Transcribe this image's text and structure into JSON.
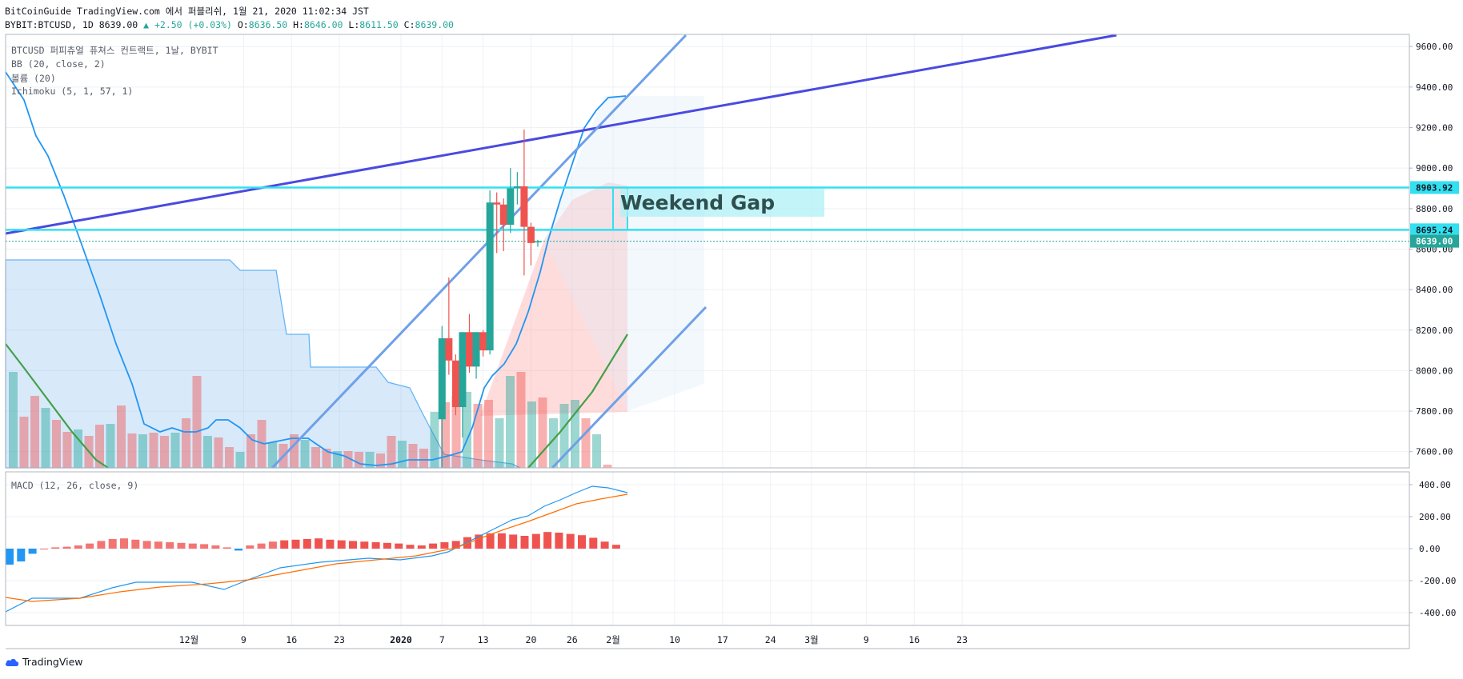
{
  "header": {
    "line1": "BitCoinGuide TradingView.com 에서 퍼블리쉬, 1월 21, 2020 11:02:34 JST",
    "symbol": "BYBIT:BTCUSD, 1D 8639.00",
    "change_arrow": "▲",
    "change": "+2.50 (+0.03%)",
    "o_label": "O:",
    "o": "8636.50",
    "h_label": "H:",
    "h": "8646.00",
    "l_label": "L:",
    "l": "8611.50",
    "c_label": "C:",
    "c": "8639.00"
  },
  "legend": {
    "title": "BTCUSD 퍼피츄얼 퓨쳐스 컨트랙트, 1날, BYBIT",
    "bb": "BB (20, close, 2)",
    "volume": "볼륨 (20)",
    "ichimoku": "Ichimoku (5, 1, 57, 1)",
    "macd": "MACD (12, 26, close, 9)"
  },
  "annotation": {
    "gap_label": "Weekend Gap"
  },
  "footer": {
    "brand": "TradingView"
  },
  "colors": {
    "up": "#26a69a",
    "down": "#ef5350",
    "trendline": "#4a4ae0",
    "channel": "#6fa0e8",
    "levels": "#33e0f0",
    "macd": "#2196f3",
    "signal": "#ff6d00",
    "lagging": "#43a047"
  },
  "chart_data": {
    "type": "candlestick",
    "price_axis": {
      "ylim": [
        7520,
        9660
      ],
      "ticks": [
        7600,
        7800,
        8000,
        8200,
        8400,
        8600,
        8800,
        9000,
        9200,
        9400,
        9600
      ],
      "tick_labels": [
        "7600.00",
        "7800.00",
        "8000.00",
        "8200.00",
        "8400.00",
        "8600.00",
        "8800.00",
        "9000.00",
        "9200.00",
        "9400.00",
        "9600.00"
      ]
    },
    "price_labels": [
      {
        "value": 8903.92,
        "text": "8903.92",
        "color": "#33e0f0"
      },
      {
        "value": 8695.24,
        "text": "8695.24",
        "color": "#33e0f0"
      },
      {
        "value": 8639.0,
        "text": "8639.00",
        "color": "#26a69a"
      }
    ],
    "x_axis": {
      "dates": [
        "2019-12-09",
        "2019-12-16",
        "2019-12-23",
        "2020-01-01",
        "2020-01-07",
        "2020-01-13",
        "2020-01-20",
        "2020-01-26",
        "2020-02-01",
        "2020-02-10",
        "2020-02-17",
        "2020-02-24",
        "2020-03-01",
        "2020-03-09",
        "2020-03-16",
        "2020-03-23"
      ],
      "labels": [
        "9",
        "16",
        "23",
        "2020",
        "7",
        "13",
        "20",
        "26",
        "2월",
        "10",
        "17",
        "24",
        "3월",
        "9",
        "16",
        "23"
      ],
      "extra_label": "12월"
    },
    "candles": [
      {
        "date": "2020-01-07",
        "open": 7760,
        "high": 8220,
        "low": 7520,
        "close": 8160
      },
      {
        "date": "2020-01-08",
        "open": 8160,
        "high": 8460,
        "low": 7980,
        "close": 8050
      },
      {
        "date": "2020-01-09",
        "open": 8050,
        "high": 8080,
        "low": 7780,
        "close": 7820
      },
      {
        "date": "2020-01-10",
        "open": 7820,
        "high": 8190,
        "low": 7670,
        "close": 8190
      },
      {
        "date": "2020-01-11",
        "open": 8190,
        "high": 8280,
        "low": 7990,
        "close": 8020
      },
      {
        "date": "2020-01-12",
        "open": 8020,
        "high": 8190,
        "low": 7960,
        "close": 8190
      },
      {
        "date": "2020-01-13",
        "open": 8190,
        "high": 8200,
        "low": 8070,
        "close": 8100
      },
      {
        "date": "2020-01-14",
        "open": 8100,
        "high": 8890,
        "low": 8080,
        "close": 8830
      },
      {
        "date": "2020-01-15",
        "open": 8830,
        "high": 8880,
        "low": 8580,
        "close": 8820
      },
      {
        "date": "2020-01-16",
        "open": 8820,
        "high": 8850,
        "low": 8590,
        "close": 8720
      },
      {
        "date": "2020-01-17",
        "open": 8720,
        "high": 9000,
        "low": 8680,
        "close": 8900
      },
      {
        "date": "2020-01-18",
        "open": 8900,
        "high": 8980,
        "low": 8820,
        "close": 8910
      },
      {
        "date": "2020-01-19",
        "open": 8910,
        "high": 9190,
        "low": 8470,
        "close": 8710
      },
      {
        "date": "2020-01-20",
        "open": 8710,
        "high": 8730,
        "low": 8520,
        "close": 8630
      },
      {
        "date": "2020-01-21",
        "open": 8636.5,
        "high": 8646,
        "low": 8611.5,
        "close": 8639
      }
    ],
    "macd_axis": {
      "ylim": [
        -480,
        480
      ],
      "ticks": [
        -400,
        -200,
        0,
        200,
        400
      ],
      "tick_labels": [
        "-400.00",
        "-200.00",
        "0.00",
        "200.00",
        "400.00"
      ]
    }
  }
}
